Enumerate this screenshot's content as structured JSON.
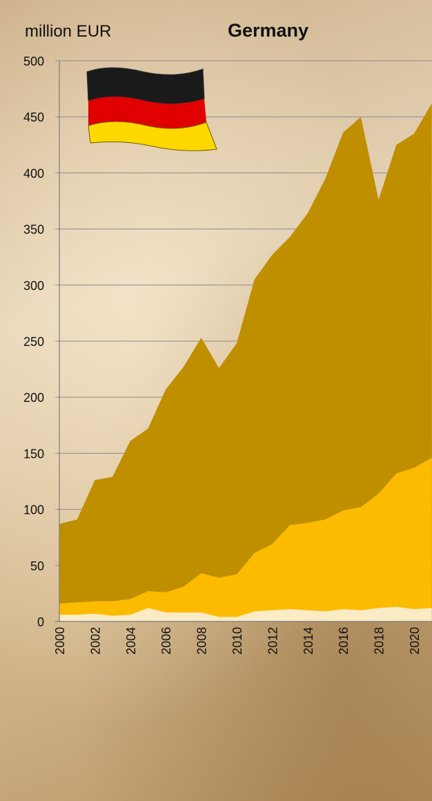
{
  "chart_data": {
    "type": "area",
    "stacked": true,
    "title": "Germany",
    "ylabel": "million EUR",
    "xlabel": "",
    "ylim": [
      0,
      500
    ],
    "yticks": [
      0,
      50,
      100,
      150,
      200,
      250,
      300,
      350,
      400,
      450,
      500
    ],
    "xticks": [
      2000,
      2002,
      2004,
      2006,
      2008,
      2010,
      2012,
      2014,
      2016,
      2018,
      2020
    ],
    "grid": true,
    "x": [
      2000,
      2001,
      2002,
      2003,
      2004,
      2005,
      2006,
      2007,
      2008,
      2009,
      2010,
      2011,
      2012,
      2013,
      2014,
      2015,
      2016,
      2017,
      2018,
      2019,
      2020,
      2021
    ],
    "series": [
      {
        "color": "#fbecc6",
        "values": [
          6,
          6,
          7,
          5,
          6,
          12,
          8,
          8,
          8,
          4,
          4,
          9,
          10,
          11,
          10,
          9,
          11,
          10,
          12,
          13,
          11,
          12
        ]
      },
      {
        "color": "#fdbb00",
        "values": [
          16,
          17,
          18,
          18,
          20,
          27,
          26,
          31,
          43,
          39,
          42,
          61,
          69,
          86,
          88,
          91,
          99,
          102,
          114,
          132,
          137,
          146
        ]
      },
      {
        "color": "#bf8f00",
        "values": [
          87,
          91,
          126,
          129,
          161,
          172,
          207,
          227,
          253,
          226,
          248,
          305,
          327,
          343,
          364,
          395,
          436,
          450,
          376,
          425,
          435,
          462
        ]
      }
    ],
    "legend": "none",
    "decoration": "germany-flag-icon"
  }
}
